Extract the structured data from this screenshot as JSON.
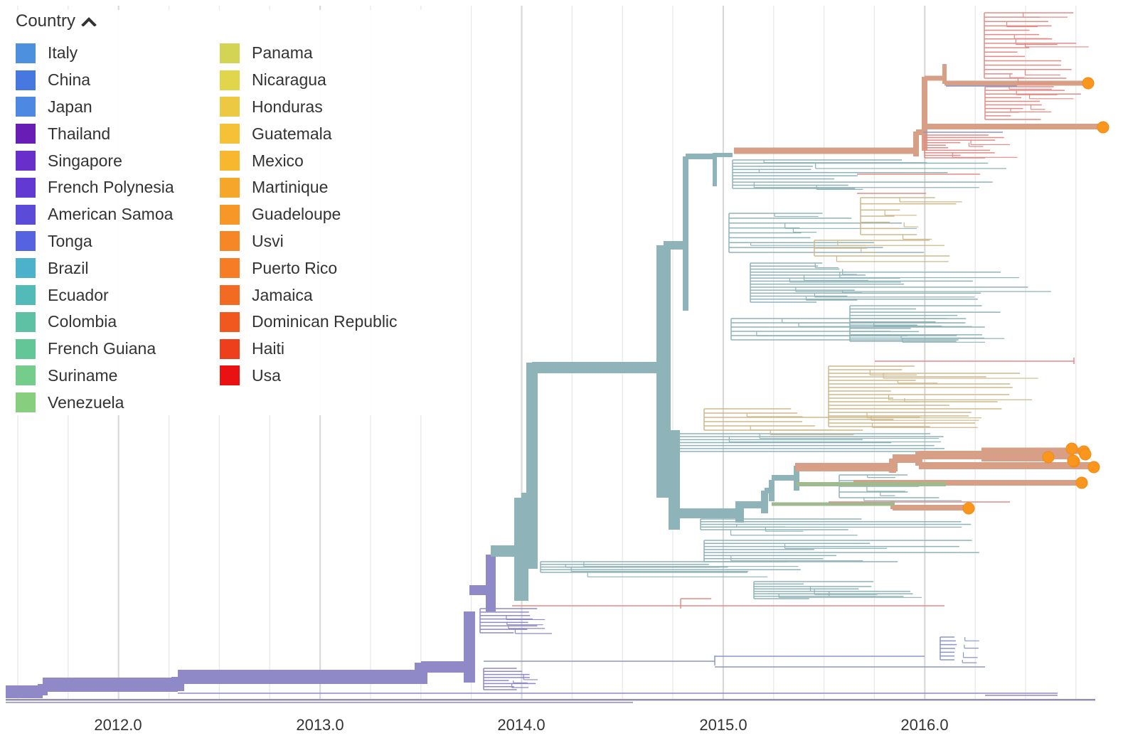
{
  "legend": {
    "title": "Country",
    "items": [
      {
        "label": "Italy",
        "color": "#4a91e3"
      },
      {
        "label": "China",
        "color": "#4478e6"
      },
      {
        "label": "Japan",
        "color": "#4a88e8"
      },
      {
        "label": "Thailand",
        "color": "#6a1dbb"
      },
      {
        "label": "Singapore",
        "color": "#6b2ed1"
      },
      {
        "label": "French Polynesia",
        "color": "#6438db"
      },
      {
        "label": "American Samoa",
        "color": "#5a4ae0"
      },
      {
        "label": "Tonga",
        "color": "#5563e6"
      },
      {
        "label": "Brazil",
        "color": "#48b2cc"
      },
      {
        "label": "Ecuador",
        "color": "#4fbcb8"
      },
      {
        "label": "Colombia",
        "color": "#5ac2a4"
      },
      {
        "label": "French Guiana",
        "color": "#5fc795"
      },
      {
        "label": "Suriname",
        "color": "#72cd89"
      },
      {
        "label": "Venezuela",
        "color": "#84d07b"
      },
      {
        "label": "Panama",
        "color": "#d4d44e"
      },
      {
        "label": "Nicaragua",
        "color": "#e2d545"
      },
      {
        "label": "Honduras",
        "color": "#eec93b"
      },
      {
        "label": "Guatemala",
        "color": "#f8c12f"
      },
      {
        "label": "Mexico",
        "color": "#fab728"
      },
      {
        "label": "Martinique",
        "color": "#fba625"
      },
      {
        "label": "Guadeloupe",
        "color": "#fb9622"
      },
      {
        "label": "Usvi",
        "color": "#fb8620"
      },
      {
        "label": "Puerto Rico",
        "color": "#fb7b20"
      },
      {
        "label": "Jamaica",
        "color": "#f9691e"
      },
      {
        "label": "Dominican Republic",
        "color": "#f8561c"
      },
      {
        "label": "Haiti",
        "color": "#f53d18"
      },
      {
        "label": "Usa",
        "color": "#f20f0f"
      }
    ]
  },
  "axis": {
    "tick_labels": [
      "2012.0",
      "2013.0",
      "2014.0",
      "2015.0",
      "2016.0"
    ]
  },
  "colors": {
    "trunk": "#8f89c7",
    "main_clade": "#8eb3b8",
    "highlight_clade": "#d89f87",
    "red_tip": "#e48a86",
    "tan_tip": "#ceb88a",
    "green_tip": "#9fba8e",
    "blue_tip": "#8c95c9",
    "marker": "#fa961e",
    "grid_major": "#d9d9d9",
    "grid_minor": "#e8e8e8"
  }
}
